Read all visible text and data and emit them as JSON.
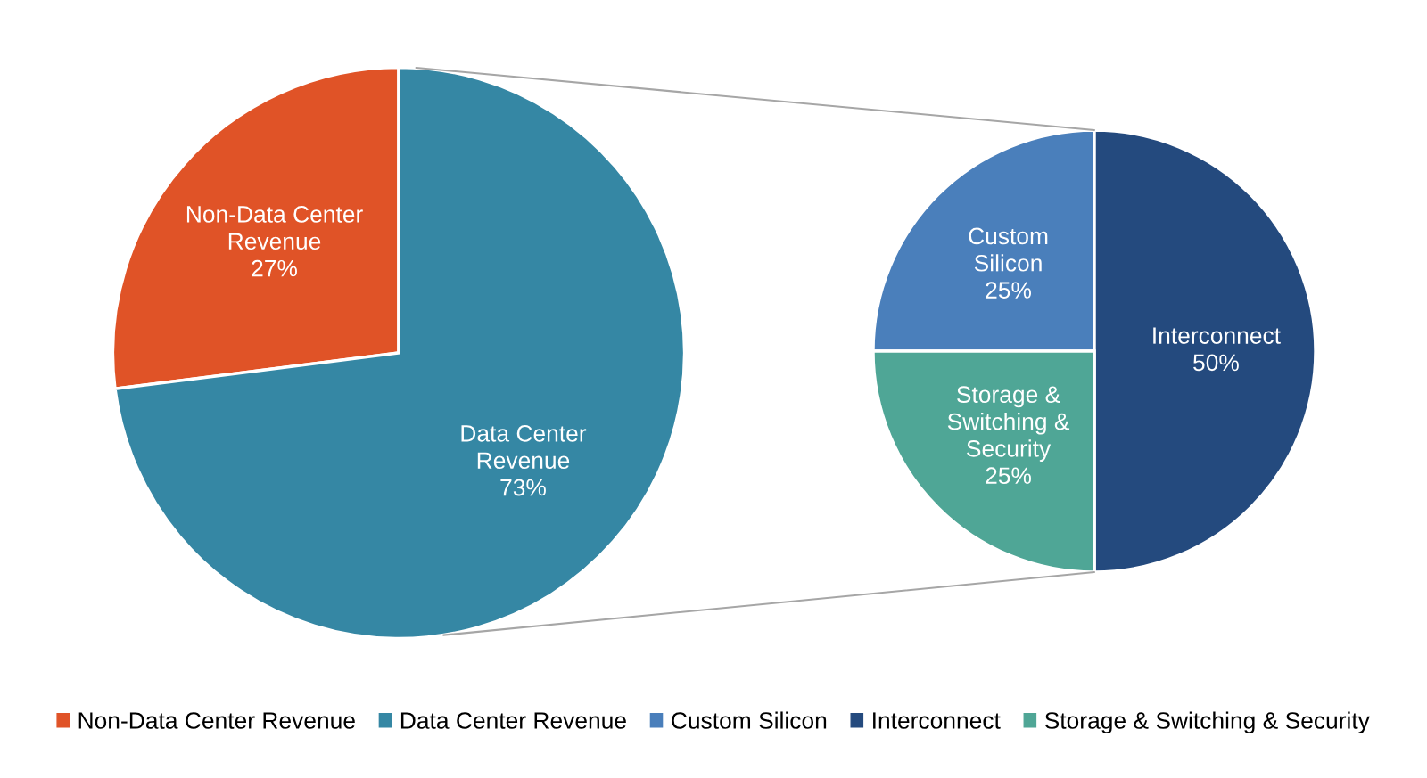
{
  "chart_data": [
    {
      "type": "pie",
      "categories": [
        "Non-Data Center Revenue",
        "Data Center Revenue"
      ],
      "values": [
        27,
        73
      ],
      "colors": [
        "#e05327",
        "#3587a4"
      ],
      "value_labels": [
        "27%",
        "73%"
      ],
      "legend": "bottom"
    },
    {
      "type": "pie",
      "categories": [
        "Custom Silicon",
        "Interconnect",
        "Storage & Switching & Security"
      ],
      "values": [
        25,
        50,
        25
      ],
      "colors": [
        "#4a7fbb",
        "#244a7e",
        "#4fa696"
      ],
      "value_labels": [
        "25%",
        "50%",
        "25%"
      ],
      "legend": "bottom"
    }
  ]
}
